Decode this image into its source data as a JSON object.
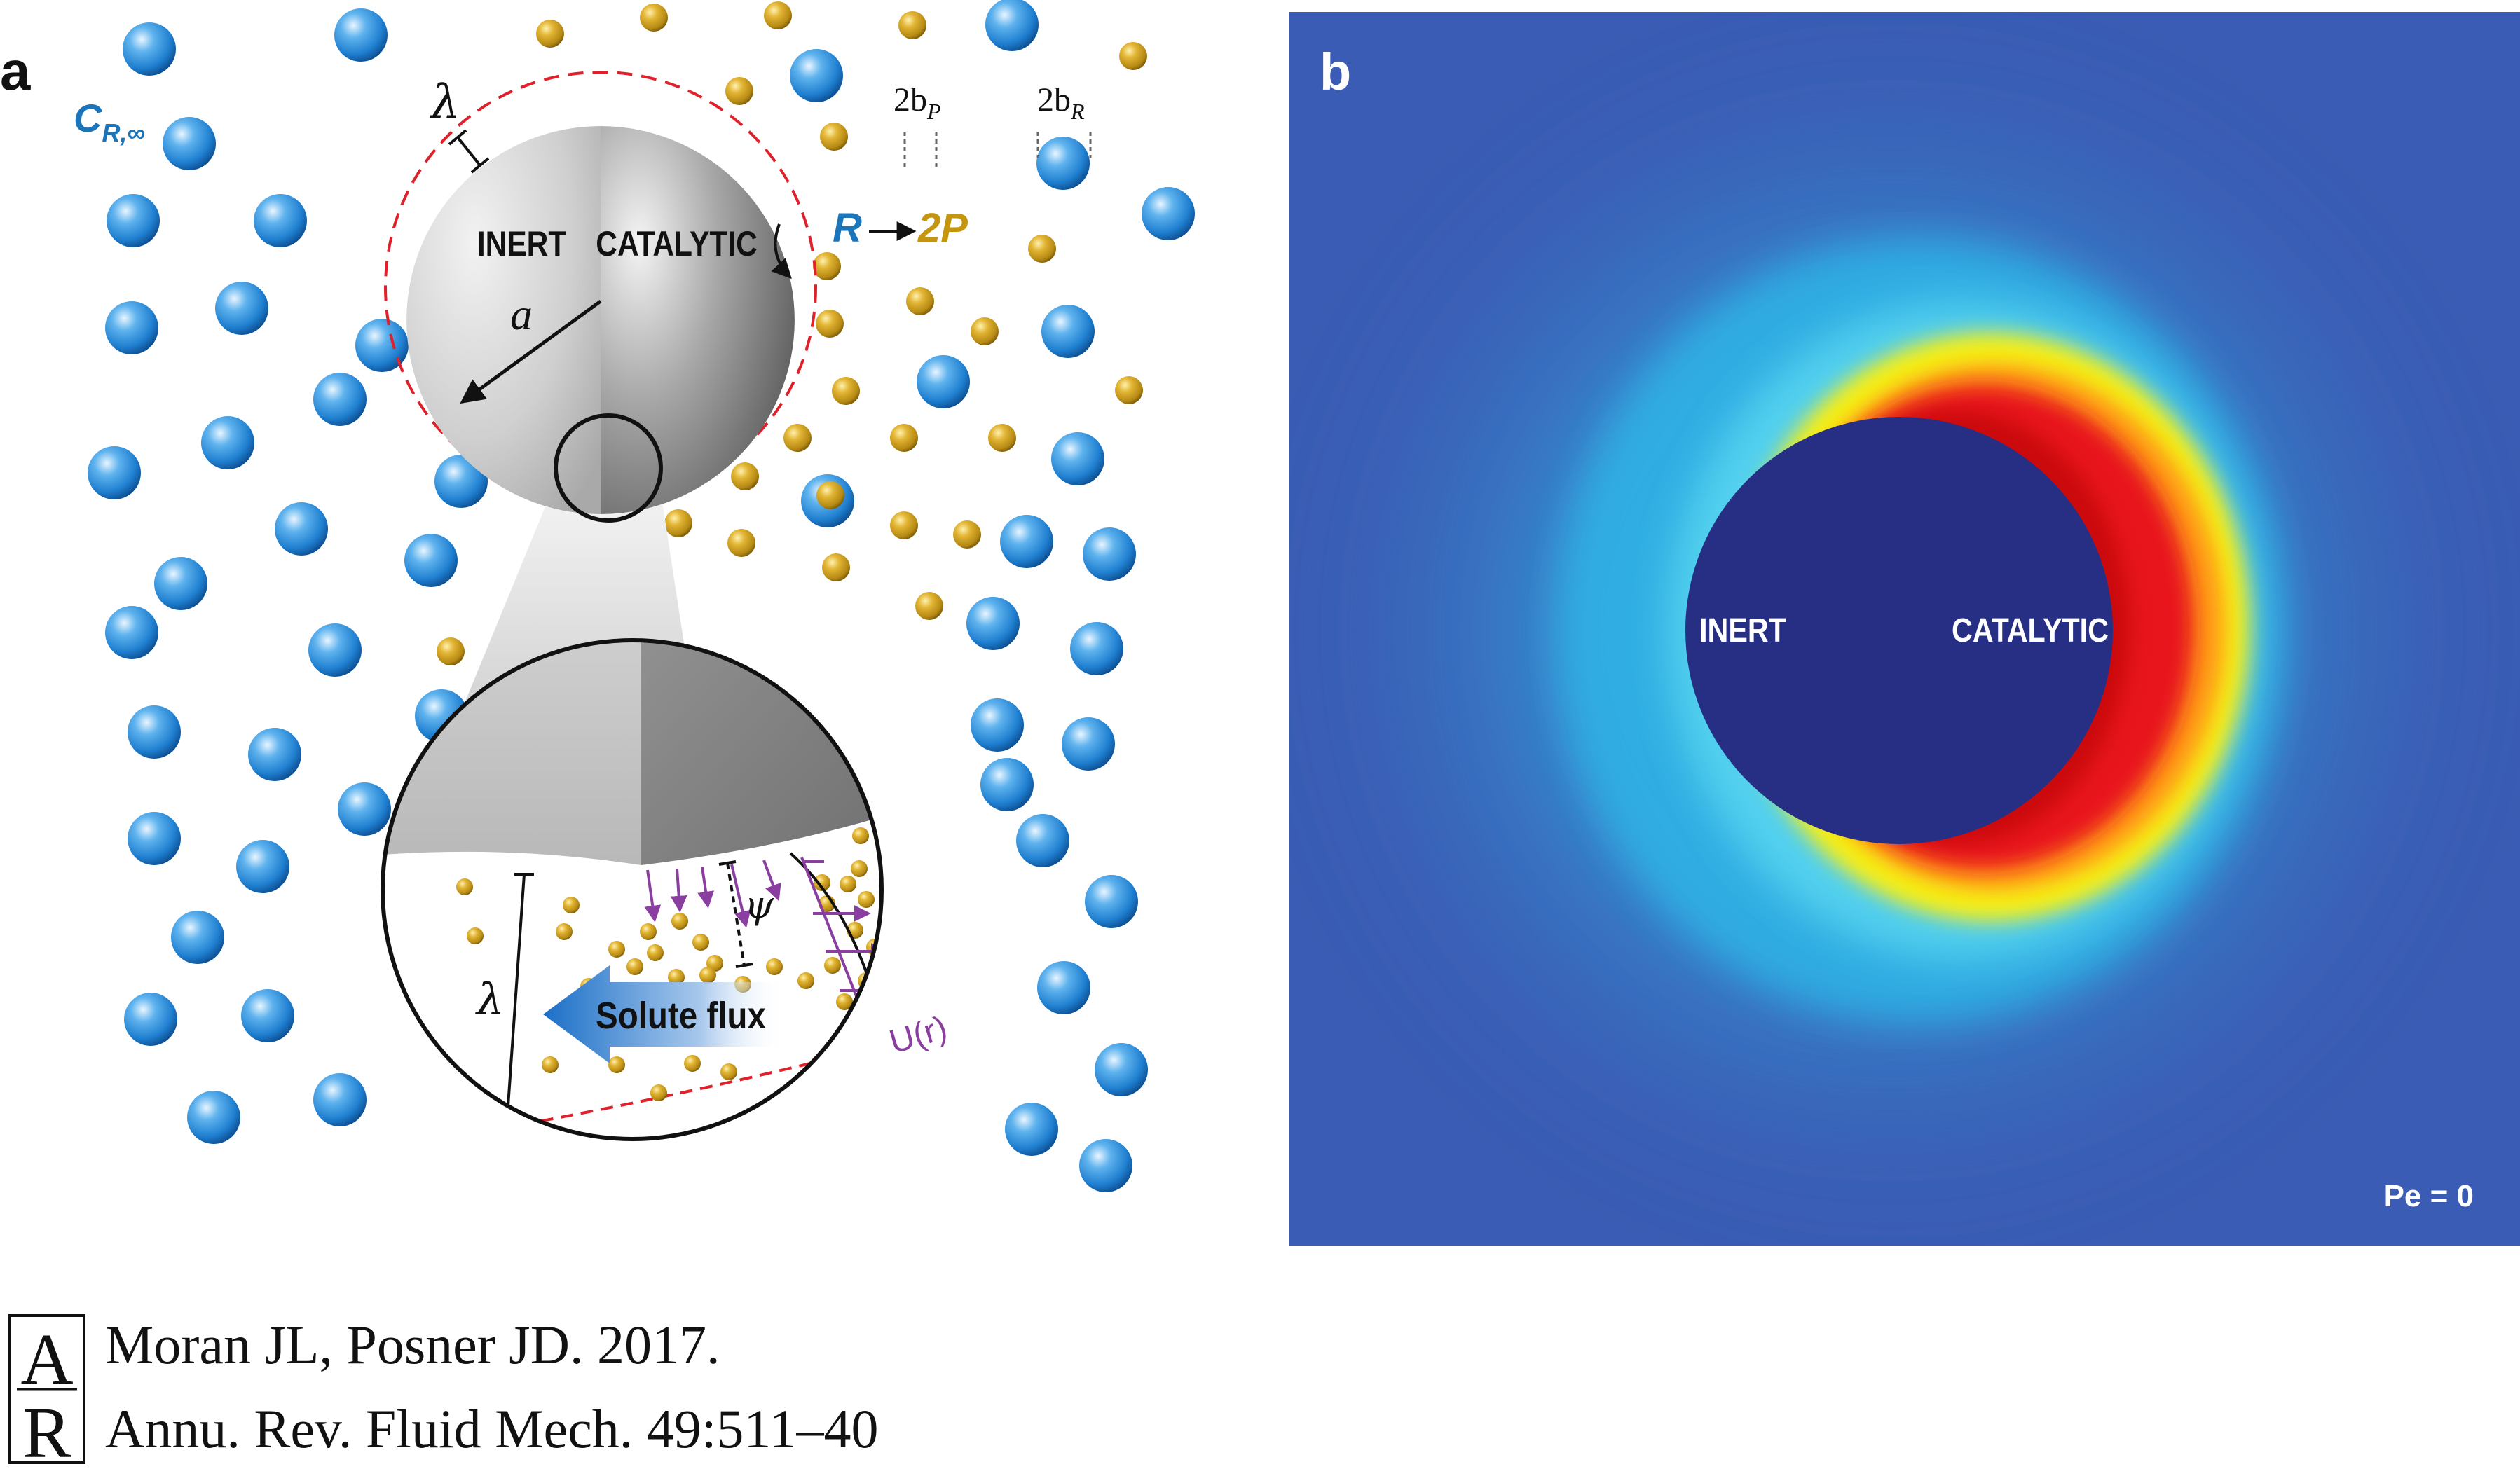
{
  "panel_a": {
    "label": "a",
    "reactant_concentration_label": {
      "main": "C",
      "sub": "R,∞"
    },
    "lambda_label": "λ",
    "radius_label": "a",
    "inert_label": "INERT",
    "catalytic_label": "CATALYTIC",
    "reaction": {
      "reactant": "R",
      "product": "2P"
    },
    "product_size": {
      "main": "2b",
      "sub": "P"
    },
    "reactant_size": {
      "main": "2b",
      "sub": "R"
    },
    "zoom": {
      "lambda_label": "λ",
      "psi_label": "ψ",
      "flux_label": "Solute flux",
      "velocity_label": "U(r)"
    }
  },
  "panel_b": {
    "label": "b",
    "inert_label": "INERT",
    "catalytic_label": "CATALYTIC",
    "peclet_label": "Pe = 0"
  },
  "citation": {
    "logo_letters": "AR",
    "line1": "Moran JL, Posner JD. 2017.",
    "line2": "Annu. Rev. Fluid Mech. 49:511–40"
  },
  "colors": {
    "reactant_blue": "#1f7fd0",
    "product_gold": "#c99a16",
    "flow_purple": "#8a3fa0",
    "debye_red": "#e0202a",
    "label_blue": "#1b75bb",
    "label_gold": "#c4960f",
    "heatmap_navy": "#262f84",
    "heatmap_background": "#3a5cb4"
  },
  "icons": [
    "reactant-molecule-icon",
    "product-molecule-icon",
    "reaction-arrow-icon",
    "annual-reviews-logo-icon"
  ]
}
